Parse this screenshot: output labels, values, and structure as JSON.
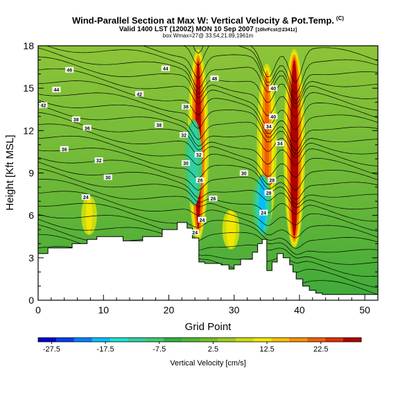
{
  "chart_data": {
    "type": "heatmap",
    "title": "Wind-Parallel Section at Max W: Vertical Velocity & Pot.Temp.",
    "title_mark": "(C)",
    "subtitle": "Valid 1400 LST (1200Z) MON 10 Sep 2007",
    "subtitle_note": "[10hrFcst@2341z]",
    "subtitle2": "box Wmax=27@ 33.54,21.89,1961m",
    "xlabel": "Grid Point",
    "ylabel": "Height [Kft MSL]",
    "xlim": [
      0,
      52
    ],
    "ylim": [
      0,
      18
    ],
    "xticks": [
      "0",
      "10",
      "20",
      "30",
      "40",
      "50"
    ],
    "yticks": [
      "0",
      "3",
      "6",
      "9",
      "12",
      "15",
      "18"
    ],
    "colorbar": {
      "label": "Vertical Velocity [cm/s]",
      "tick_labels": [
        "-27.5",
        "-17.5",
        "-7.5",
        "2.5",
        "12.5",
        "22.5"
      ],
      "range": [
        -30,
        30
      ],
      "colors": [
        "#0000c8",
        "#0040f0",
        "#0080ff",
        "#00c0ff",
        "#20e0d0",
        "#30d0a0",
        "#40c870",
        "#30b040",
        "#50b830",
        "#70c028",
        "#9ccc20",
        "#c8dc10",
        "#f0e800",
        "#f8c000",
        "#f89000",
        "#f06000",
        "#e03000",
        "#b00000"
      ]
    },
    "theta_contour_labels": [
      "46",
      "44",
      "48",
      "40",
      "44",
      "42",
      "42",
      "38",
      "40",
      "38",
      "36",
      "38",
      "34",
      "36",
      "32",
      "34",
      "32",
      "32",
      "30",
      "30",
      "30",
      "28",
      "28",
      "26",
      "26",
      "24",
      "24",
      "24",
      "24"
    ],
    "w_maxima": [
      {
        "x": 24.5,
        "y_top": 18,
        "y_bottom": 4.0,
        "w": 24
      },
      {
        "x": 23.8,
        "y_top": 13,
        "y_bottom": 6.5,
        "w": -12
      },
      {
        "x": 35.0,
        "y_top": 17,
        "y_bottom": 5.0,
        "w": 18
      },
      {
        "x": 34.3,
        "y_top": 9,
        "y_bottom": 4.5,
        "w": -15
      },
      {
        "x": 39.2,
        "y_top": 18,
        "y_bottom": 3.5,
        "w": 27
      },
      {
        "x": 7.8,
        "y_top": 7.5,
        "y_bottom": 4.5,
        "w": 10
      },
      {
        "x": 29.5,
        "y_top": 6.5,
        "y_bottom": 3.5,
        "w": 12
      }
    ],
    "terrain": [
      [
        0,
        3.3
      ],
      [
        1.5,
        3.3
      ],
      [
        1.5,
        3.7
      ],
      [
        5.2,
        3.7
      ],
      [
        5.2,
        4.0
      ],
      [
        7.5,
        4.0
      ],
      [
        7.5,
        4.3
      ],
      [
        9,
        4.3
      ],
      [
        9,
        4.5
      ],
      [
        13,
        4.5
      ],
      [
        13,
        4.2
      ],
      [
        16,
        4.2
      ],
      [
        16,
        4.5
      ],
      [
        19,
        4.5
      ],
      [
        19,
        5.0
      ],
      [
        21.3,
        5.0
      ],
      [
        21.3,
        5.5
      ],
      [
        22.8,
        5.5
      ],
      [
        22.8,
        5.1
      ],
      [
        23.6,
        5.1
      ],
      [
        23.6,
        4.4
      ],
      [
        24.6,
        4.4
      ],
      [
        24.6,
        2.7
      ],
      [
        25.5,
        2.7
      ],
      [
        25.5,
        2.6
      ],
      [
        28,
        2.6
      ],
      [
        28,
        2.5
      ],
      [
        29.2,
        2.5
      ],
      [
        29.2,
        2.2
      ],
      [
        30,
        2.2
      ],
      [
        30,
        2.5
      ],
      [
        31,
        2.5
      ],
      [
        31,
        2.9
      ],
      [
        32.8,
        2.9
      ],
      [
        32.8,
        3.4
      ],
      [
        33.6,
        3.4
      ],
      [
        33.6,
        4.0
      ],
      [
        34.3,
        4.0
      ],
      [
        34.3,
        4.3
      ],
      [
        35.0,
        4.3
      ],
      [
        35.0,
        2.1
      ],
      [
        35.8,
        2.1
      ],
      [
        35.8,
        2.7
      ],
      [
        36.6,
        2.7
      ],
      [
        36.6,
        3.3
      ],
      [
        37.5,
        3.3
      ],
      [
        37.5,
        3.0
      ],
      [
        38.5,
        3.0
      ],
      [
        38.5,
        2.5
      ],
      [
        39.0,
        2.5
      ],
      [
        39.0,
        2.0
      ],
      [
        39.5,
        2.0
      ],
      [
        39.5,
        1.5
      ],
      [
        40.5,
        1.5
      ],
      [
        40.5,
        1.0
      ],
      [
        41.5,
        1.0
      ],
      [
        41.5,
        0.7
      ],
      [
        42.5,
        0.7
      ],
      [
        42.5,
        0.5
      ],
      [
        43.5,
        0.5
      ],
      [
        43.5,
        0.4
      ],
      [
        52,
        0.4
      ]
    ]
  }
}
